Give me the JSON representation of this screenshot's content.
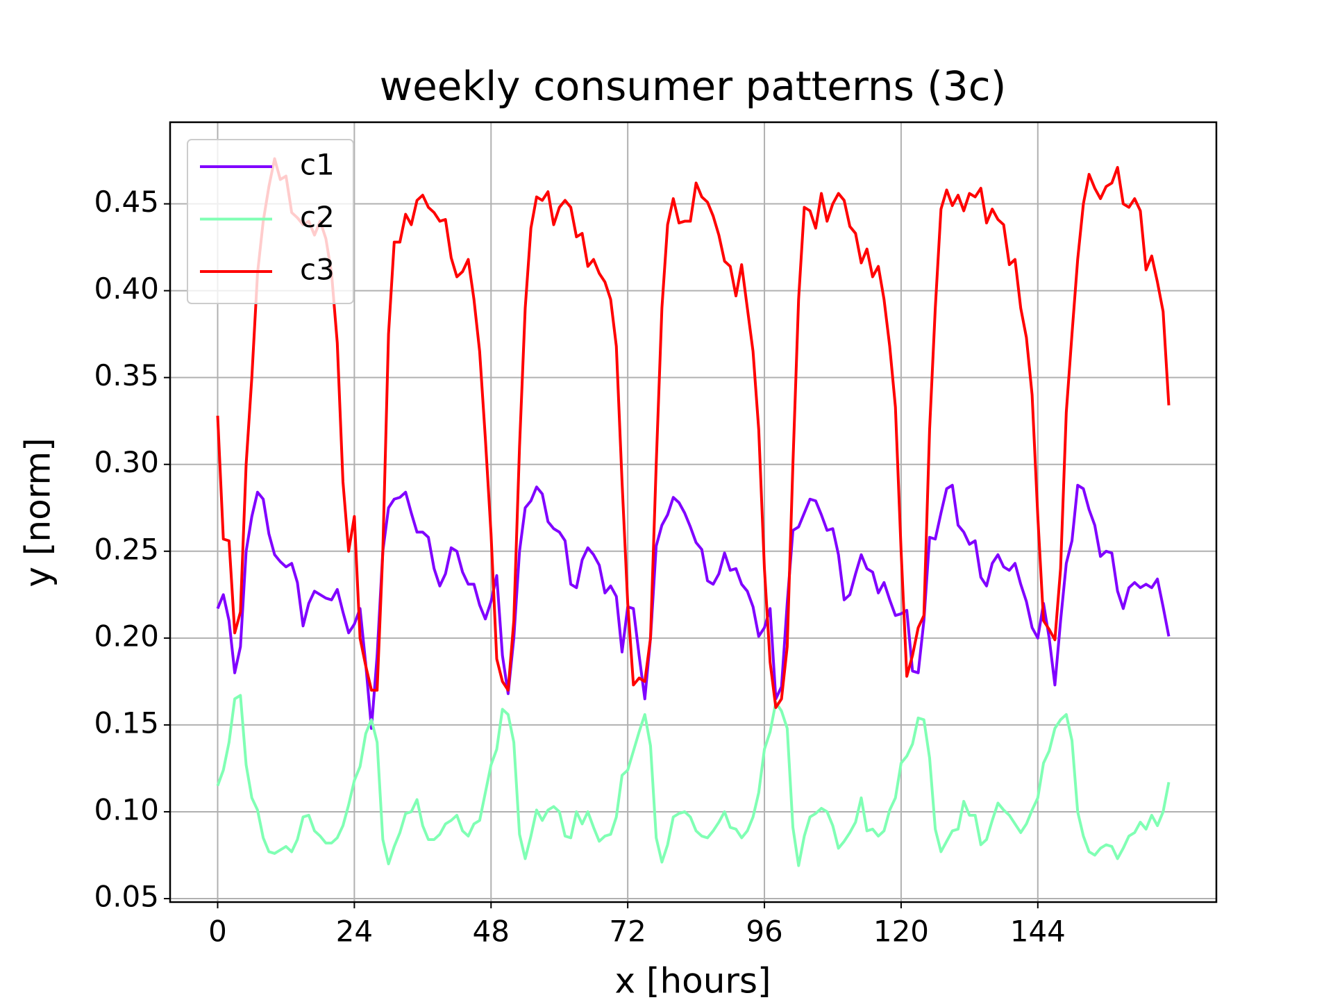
{
  "chart_data": {
    "type": "line",
    "title": "weekly consumer patterns (3c)",
    "x_label": "x [hours]",
    "y_label": "y [norm]",
    "x": [
      0,
      1,
      2,
      3,
      4,
      5,
      6,
      7,
      8,
      9,
      10,
      11,
      12,
      13,
      14,
      15,
      16,
      17,
      18,
      19,
      20,
      21,
      22,
      23,
      24,
      25,
      26,
      27,
      28,
      29,
      30,
      31,
      32,
      33,
      34,
      35,
      36,
      37,
      38,
      39,
      40,
      41,
      42,
      43,
      44,
      45,
      46,
      47,
      48,
      49,
      50,
      51,
      52,
      53,
      54,
      55,
      56,
      57,
      58,
      59,
      60,
      61,
      62,
      63,
      64,
      65,
      66,
      67,
      68,
      69,
      70,
      71,
      72,
      73,
      74,
      75,
      76,
      77,
      78,
      79,
      80,
      81,
      82,
      83,
      84,
      85,
      86,
      87,
      88,
      89,
      90,
      91,
      92,
      93,
      94,
      95,
      96,
      97,
      98,
      99,
      100,
      101,
      102,
      103,
      104,
      105,
      106,
      107,
      108,
      109,
      110,
      111,
      112,
      113,
      114,
      115,
      116,
      117,
      118,
      119,
      120,
      121,
      122,
      123,
      124,
      125,
      126,
      127,
      128,
      129,
      130,
      131,
      132,
      133,
      134,
      135,
      136,
      137,
      138,
      139,
      140,
      141,
      142,
      143,
      144,
      145,
      146,
      147,
      148,
      149,
      150,
      151,
      152,
      153,
      154,
      155,
      156,
      157,
      158,
      159,
      160,
      161,
      162,
      163,
      164,
      165,
      166,
      167
    ],
    "series": [
      {
        "name": "c1",
        "color": "#8000ff",
        "values": [
          0.217,
          0.225,
          0.21,
          0.18,
          0.195,
          0.25,
          0.27,
          0.284,
          0.28,
          0.26,
          0.248,
          0.244,
          0.241,
          0.243,
          0.232,
          0.207,
          0.22,
          0.227,
          0.225,
          0.223,
          0.222,
          0.228,
          0.215,
          0.203,
          0.208,
          0.217,
          0.185,
          0.148,
          0.19,
          0.25,
          0.275,
          0.28,
          0.281,
          0.284,
          0.272,
          0.261,
          0.261,
          0.258,
          0.24,
          0.23,
          0.237,
          0.252,
          0.25,
          0.238,
          0.231,
          0.231,
          0.219,
          0.211,
          0.221,
          0.236,
          0.19,
          0.168,
          0.2,
          0.25,
          0.275,
          0.279,
          0.287,
          0.283,
          0.267,
          0.263,
          0.261,
          0.256,
          0.231,
          0.229,
          0.245,
          0.252,
          0.248,
          0.242,
          0.226,
          0.23,
          0.224,
          0.192,
          0.218,
          0.217,
          0.19,
          0.165,
          0.2,
          0.253,
          0.265,
          0.271,
          0.281,
          0.278,
          0.272,
          0.264,
          0.255,
          0.251,
          0.233,
          0.231,
          0.237,
          0.249,
          0.239,
          0.24,
          0.231,
          0.227,
          0.218,
          0.201,
          0.206,
          0.217,
          0.165,
          0.172,
          0.22,
          0.262,
          0.264,
          0.272,
          0.28,
          0.279,
          0.271,
          0.262,
          0.263,
          0.248,
          0.222,
          0.225,
          0.237,
          0.248,
          0.24,
          0.238,
          0.226,
          0.232,
          0.222,
          0.213,
          0.214,
          0.216,
          0.181,
          0.18,
          0.21,
          0.258,
          0.257,
          0.272,
          0.286,
          0.288,
          0.265,
          0.261,
          0.254,
          0.256,
          0.235,
          0.23,
          0.243,
          0.248,
          0.241,
          0.239,
          0.243,
          0.231,
          0.221,
          0.206,
          0.2,
          0.22,
          0.2,
          0.173,
          0.21,
          0.243,
          0.256,
          0.288,
          0.286,
          0.274,
          0.265,
          0.247,
          0.25,
          0.249,
          0.227,
          0.217,
          0.229,
          0.232,
          0.229,
          0.231,
          0.229,
          0.234,
          0.218,
          0.201
        ]
      },
      {
        "name": "c2",
        "color": "#80ffb4",
        "values": [
          0.115,
          0.124,
          0.14,
          0.165,
          0.167,
          0.127,
          0.108,
          0.101,
          0.085,
          0.077,
          0.076,
          0.078,
          0.08,
          0.077,
          0.084,
          0.097,
          0.098,
          0.089,
          0.086,
          0.082,
          0.082,
          0.085,
          0.092,
          0.104,
          0.118,
          0.126,
          0.145,
          0.153,
          0.14,
          0.084,
          0.07,
          0.08,
          0.088,
          0.099,
          0.1,
          0.107,
          0.092,
          0.084,
          0.084,
          0.087,
          0.093,
          0.095,
          0.098,
          0.089,
          0.086,
          0.093,
          0.095,
          0.111,
          0.127,
          0.136,
          0.159,
          0.156,
          0.14,
          0.087,
          0.073,
          0.086,
          0.101,
          0.095,
          0.101,
          0.103,
          0.1,
          0.086,
          0.085,
          0.1,
          0.093,
          0.1,
          0.091,
          0.083,
          0.086,
          0.087,
          0.097,
          0.121,
          0.124,
          0.135,
          0.146,
          0.156,
          0.138,
          0.085,
          0.071,
          0.081,
          0.097,
          0.099,
          0.1,
          0.097,
          0.089,
          0.086,
          0.085,
          0.089,
          0.094,
          0.1,
          0.091,
          0.09,
          0.085,
          0.089,
          0.097,
          0.111,
          0.136,
          0.146,
          0.163,
          0.158,
          0.148,
          0.091,
          0.069,
          0.086,
          0.097,
          0.099,
          0.102,
          0.1,
          0.092,
          0.079,
          0.083,
          0.088,
          0.094,
          0.108,
          0.089,
          0.09,
          0.086,
          0.089,
          0.101,
          0.108,
          0.128,
          0.132,
          0.139,
          0.154,
          0.153,
          0.131,
          0.09,
          0.077,
          0.083,
          0.089,
          0.09,
          0.106,
          0.098,
          0.098,
          0.081,
          0.084,
          0.095,
          0.105,
          0.101,
          0.098,
          0.093,
          0.088,
          0.093,
          0.101,
          0.108,
          0.128,
          0.135,
          0.148,
          0.153,
          0.156,
          0.141,
          0.1,
          0.086,
          0.077,
          0.075,
          0.079,
          0.081,
          0.08,
          0.073,
          0.079,
          0.086,
          0.088,
          0.094,
          0.09,
          0.098,
          0.092,
          0.1,
          0.117
        ]
      },
      {
        "name": "c3",
        "color": "#ff0000",
        "values": [
          0.328,
          0.257,
          0.256,
          0.203,
          0.215,
          0.3,
          0.35,
          0.41,
          0.44,
          0.46,
          0.476,
          0.464,
          0.466,
          0.445,
          0.442,
          0.438,
          0.44,
          0.432,
          0.44,
          0.43,
          0.41,
          0.37,
          0.29,
          0.25,
          0.27,
          0.2,
          0.184,
          0.17,
          0.17,
          0.25,
          0.375,
          0.428,
          0.428,
          0.444,
          0.438,
          0.452,
          0.455,
          0.448,
          0.445,
          0.44,
          0.441,
          0.419,
          0.408,
          0.411,
          0.418,
          0.395,
          0.365,
          0.315,
          0.26,
          0.188,
          0.175,
          0.17,
          0.21,
          0.31,
          0.39,
          0.436,
          0.454,
          0.452,
          0.457,
          0.438,
          0.448,
          0.452,
          0.448,
          0.431,
          0.433,
          0.414,
          0.418,
          0.41,
          0.405,
          0.395,
          0.368,
          0.29,
          0.22,
          0.173,
          0.177,
          0.175,
          0.2,
          0.3,
          0.39,
          0.438,
          0.453,
          0.439,
          0.44,
          0.44,
          0.462,
          0.454,
          0.451,
          0.443,
          0.432,
          0.417,
          0.414,
          0.397,
          0.415,
          0.39,
          0.365,
          0.32,
          0.24,
          0.186,
          0.16,
          0.165,
          0.195,
          0.3,
          0.395,
          0.448,
          0.446,
          0.436,
          0.456,
          0.44,
          0.45,
          0.456,
          0.452,
          0.437,
          0.433,
          0.416,
          0.424,
          0.408,
          0.414,
          0.395,
          0.368,
          0.333,
          0.25,
          0.178,
          0.19,
          0.206,
          0.213,
          0.32,
          0.39,
          0.447,
          0.458,
          0.449,
          0.455,
          0.446,
          0.456,
          0.454,
          0.459,
          0.439,
          0.447,
          0.441,
          0.438,
          0.415,
          0.418,
          0.39,
          0.373,
          0.34,
          0.27,
          0.21,
          0.205,
          0.199,
          0.24,
          0.33,
          0.375,
          0.418,
          0.45,
          0.467,
          0.459,
          0.453,
          0.46,
          0.462,
          0.471,
          0.45,
          0.448,
          0.453,
          0.446,
          0.412,
          0.42,
          0.405,
          0.388,
          0.334
        ]
      }
    ],
    "xlim": [
      -8.35,
      175.35
    ],
    "ylim": [
      0.048,
      0.497
    ],
    "xticks": [
      0,
      24,
      48,
      72,
      96,
      120,
      144
    ],
    "yticks": [
      0.05,
      {
        "value": 0.1,
        "label": "0.10"
      },
      0.15,
      {
        "value": 0.2,
        "label": "0.20"
      },
      0.25,
      {
        "value": 0.3,
        "label": "0.30"
      },
      0.35,
      {
        "value": 0.4,
        "label": "0.40"
      },
      0.45
    ],
    "grid": true,
    "legend": "upper left"
  }
}
